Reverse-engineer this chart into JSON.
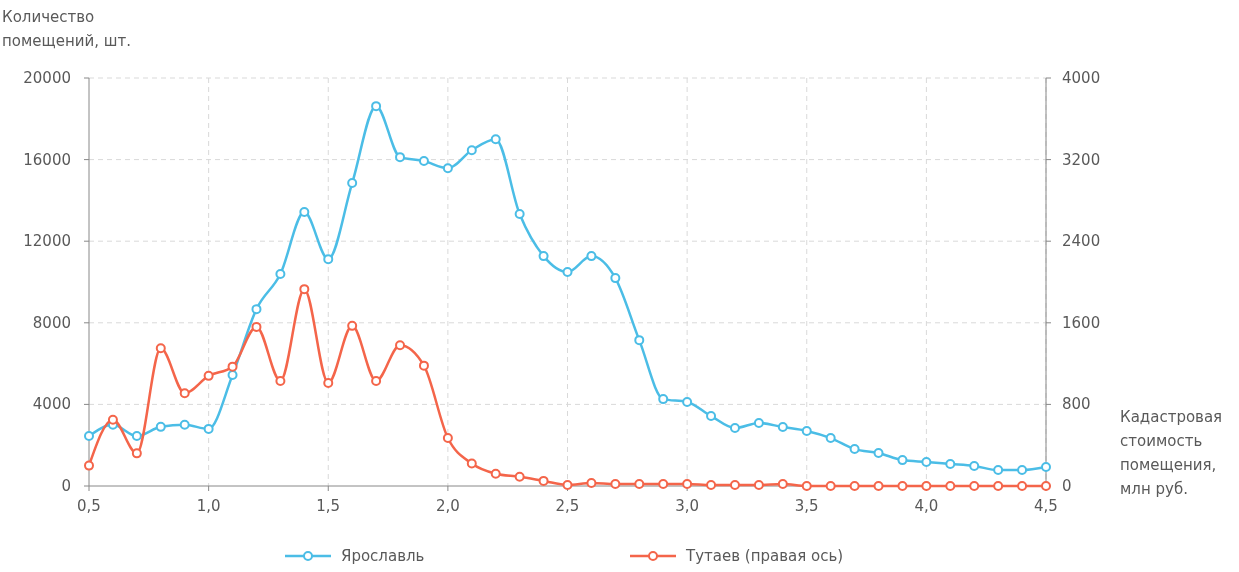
{
  "chart_data": {
    "type": "line",
    "xlabel": "Кадастровая стоимость помещения, млн руб.",
    "ylabel": "Количество помещений, шт.",
    "x": [
      0.5,
      0.6,
      0.7,
      0.8,
      0.9,
      1.0,
      1.1,
      1.2,
      1.3,
      1.4,
      1.5,
      1.6,
      1.7,
      1.8,
      1.9,
      2.0,
      2.1,
      2.2,
      2.3,
      2.4,
      2.5,
      2.6,
      2.7,
      2.8,
      2.9,
      3.0,
      3.1,
      3.2,
      3.3,
      3.4,
      3.5,
      3.6,
      3.7,
      3.8,
      3.9,
      4.0,
      4.1,
      4.2,
      4.3,
      4.4,
      4.5
    ],
    "series": [
      {
        "name": "Ярославль",
        "color": "#4bbde6",
        "values": [
          2450,
          3000,
          2450,
          2900,
          3000,
          2800,
          5440,
          8670,
          10390,
          13430,
          11120,
          14850,
          18620,
          16120,
          15930,
          15580,
          16460,
          17000,
          13330,
          11270,
          10490,
          11270,
          10190,
          7150,
          4260,
          4120,
          3430,
          2840,
          3090,
          2890,
          2700,
          2350,
          1810,
          1620,
          1270,
          1180,
          1080,
          980,
          780,
          780,
          930
        ]
      },
      {
        "name": "Тутаев (правая ось)",
        "color": "#f4654a",
        "axis": "y2",
        "values": [
          200,
          650,
          320,
          1350,
          910,
          1080,
          1170,
          1560,
          1030,
          1930,
          1010,
          1570,
          1030,
          1380,
          1180,
          470,
          220,
          120,
          90,
          50,
          10,
          30,
          20,
          20,
          20,
          20,
          10,
          10,
          10,
          20,
          0,
          0,
          0,
          0,
          0,
          0,
          0,
          0,
          0,
          0,
          0
        ]
      }
    ],
    "xlim": [
      0.5,
      4.5
    ],
    "xticks": [
      {
        "value": 0.5,
        "label": "0,5"
      },
      {
        "value": 1.0,
        "label": "1,0"
      },
      {
        "value": 1.5,
        "label": "1,5"
      },
      {
        "value": 2.0,
        "label": "2,0"
      },
      {
        "value": 2.5,
        "label": "2,5"
      },
      {
        "value": 3.0,
        "label": "3,0"
      },
      {
        "value": 3.5,
        "label": "3,5"
      },
      {
        "value": 4.0,
        "label": "4,0"
      },
      {
        "value": 4.5,
        "label": "4,5"
      }
    ],
    "ylim": [
      0,
      20000
    ],
    "yticks": [
      0,
      4000,
      8000,
      12000,
      16000,
      20000
    ],
    "y2lim": [
      0,
      4000
    ],
    "y2ticks": [
      0,
      800,
      1600,
      2400,
      3200,
      4000
    ],
    "grid": true,
    "legend": "bottom",
    "marker": "circle",
    "line_style": "solid"
  }
}
